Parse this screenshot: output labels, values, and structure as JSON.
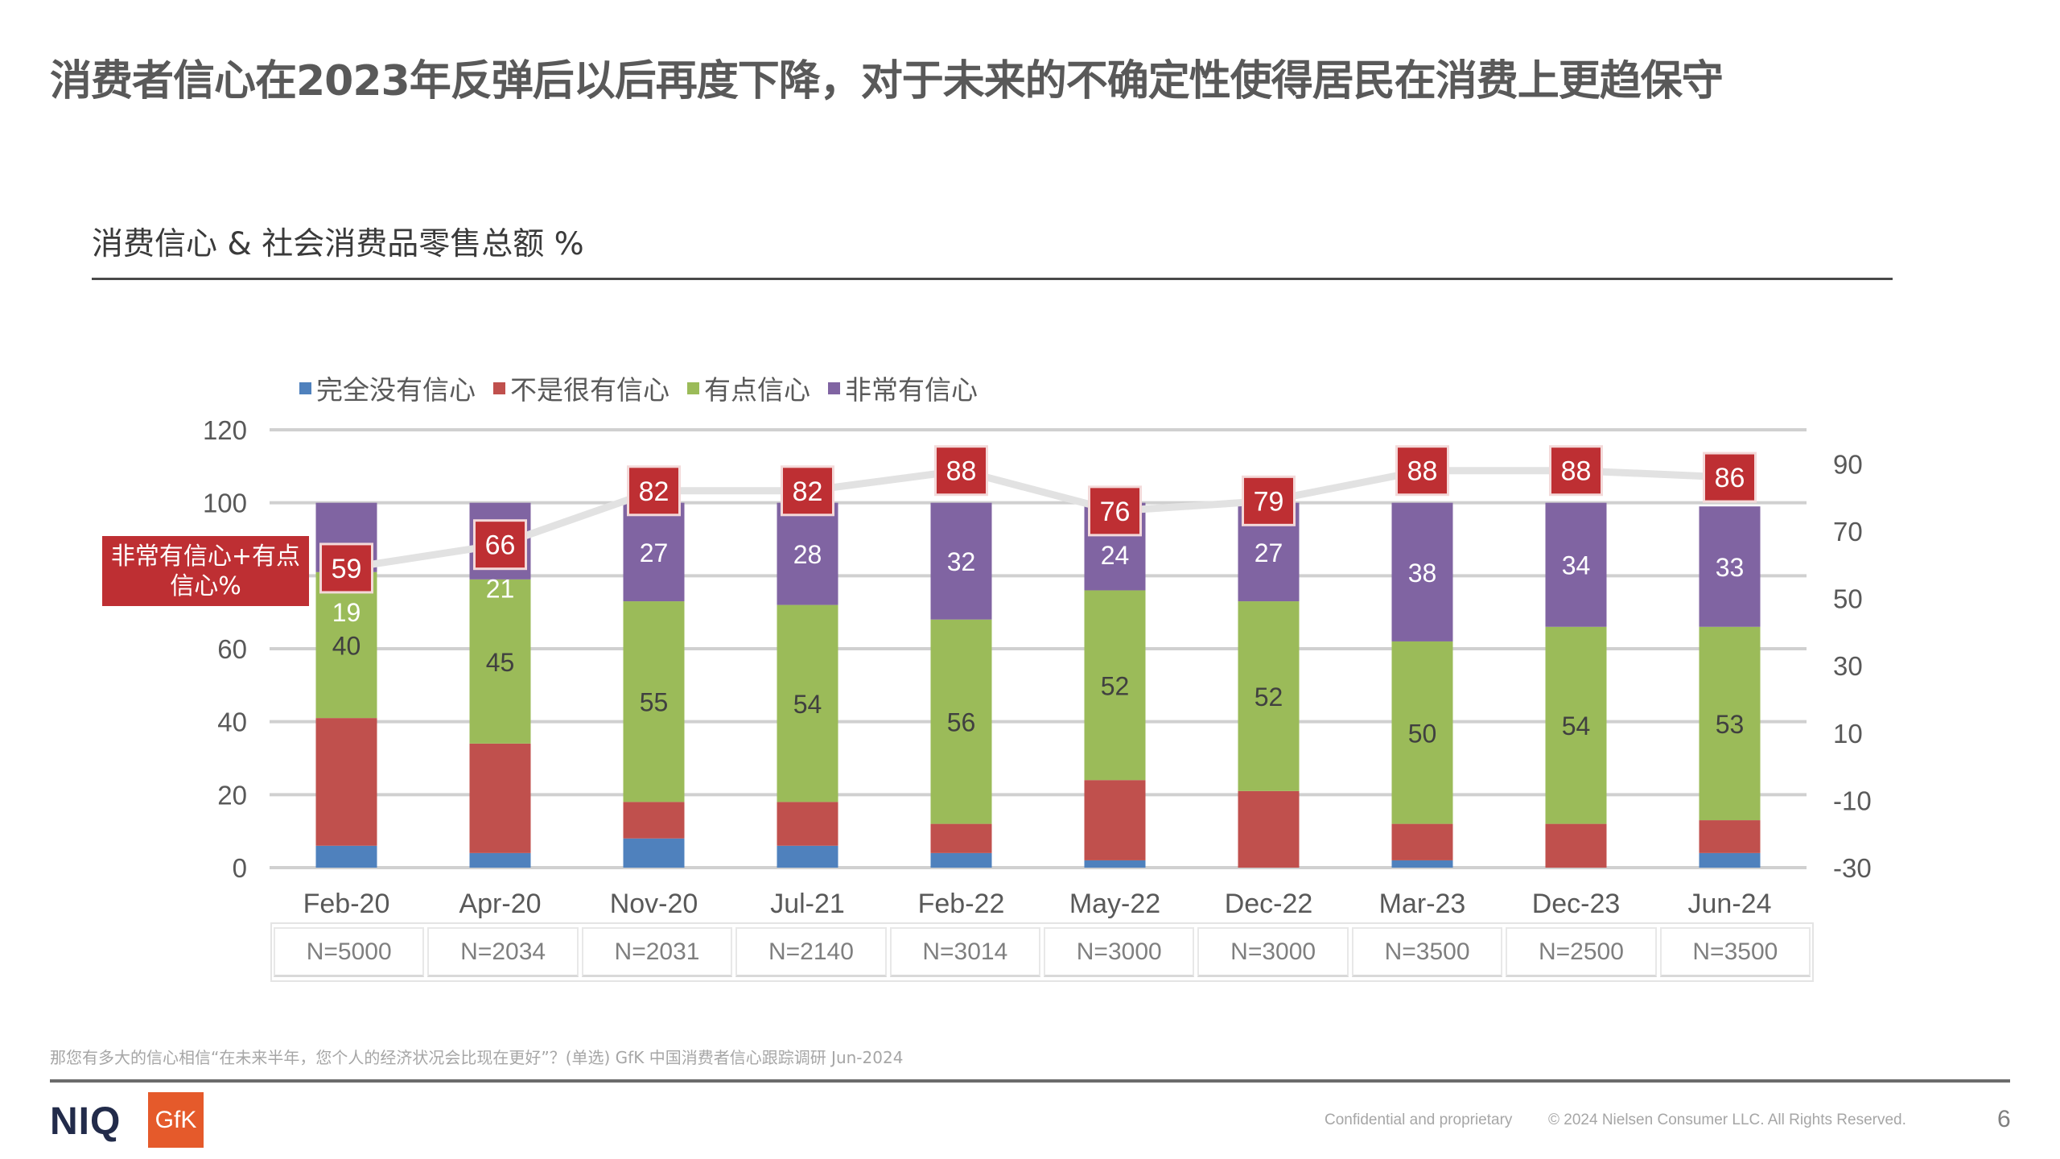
{
  "slide": {
    "title": "消费者信心在2023年反弹后以后再度下降，对于未来的不确定性使得居民在消费上更趋保守",
    "subtitle": "消费信心 & 社会消费品零售总额 %",
    "callout_label": "非常有信心+有点信心%",
    "footnote": "那您有多大的信心相信“在未来半年，您个人的经济状况会比现在更好”？(单选)  GfK 中国消费者信心跟踪调研 Jun-2024",
    "footer": {
      "confidential": "Confidential and proprietary",
      "copyright": "© 2024 Nielsen Consumer LLC. All Rights Reserved.",
      "page_number": "6",
      "logo_niq": "NIQ",
      "logo_gfk": "GfK"
    }
  },
  "chart_data": {
    "type": "bar",
    "stacked": true,
    "title": "消费信心 & 社会消费品零售总额 %",
    "categories": [
      "Feb-20",
      "Apr-20",
      "Nov-20",
      "Jul-21",
      "Feb-22",
      "May-22",
      "Dec-22",
      "Mar-23",
      "Dec-23",
      "Jun-24"
    ],
    "sample_sizes": [
      "N=5000",
      "N=2034",
      "N=2031",
      "N=2140",
      "N=3014",
      "N=3000",
      "N=3000",
      "N=3500",
      "N=2500",
      "N=3500"
    ],
    "series": [
      {
        "name": "完全没有信心",
        "color": "#4F81BD",
        "values": [
          6,
          4,
          8,
          6,
          4,
          2,
          0,
          2,
          0,
          4
        ],
        "labels_shown": false
      },
      {
        "name": "不是很有信心",
        "color": "#C0504D",
        "values": [
          35,
          30,
          10,
          12,
          8,
          22,
          21,
          10,
          12,
          9
        ],
        "labels_shown": false
      },
      {
        "name": "有点信心",
        "color": "#9BBB59",
        "values": [
          40,
          45,
          55,
          54,
          56,
          52,
          52,
          50,
          54,
          53
        ],
        "labels_shown": true
      },
      {
        "name": "非常有信心",
        "color": "#8064A2",
        "values": [
          19,
          21,
          27,
          28,
          32,
          24,
          27,
          38,
          34,
          33
        ],
        "labels_shown": true
      }
    ],
    "line_series": {
      "name": "非常有信心+有点信心%",
      "color": "#BE2F33",
      "axis": "secondary",
      "values": [
        59,
        66,
        82,
        82,
        88,
        76,
        79,
        88,
        88,
        86
      ]
    },
    "y_axis": {
      "min": 0,
      "max": 120,
      "ticks": [
        0,
        20,
        40,
        60,
        80,
        100,
        120
      ],
      "hidden_tick_labels": [
        80
      ]
    },
    "y2_axis": {
      "min": -30,
      "max": 100,
      "ticks": [
        -30,
        -10,
        10,
        30,
        50,
        70,
        90
      ]
    },
    "xlabel": "",
    "ylabel": "",
    "grid": true,
    "legend_position": "top-left"
  }
}
